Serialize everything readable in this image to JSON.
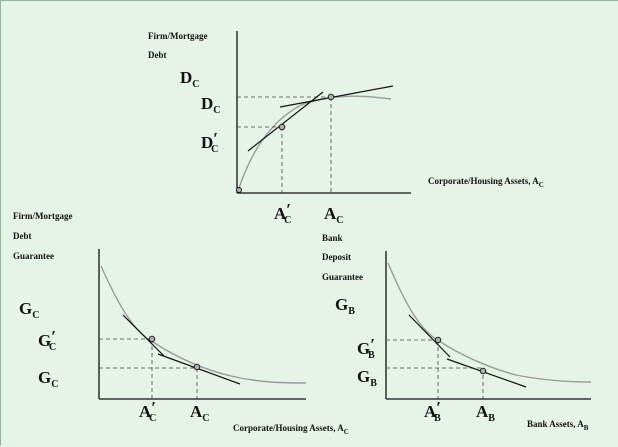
{
  "background": "#e6f4e8",
  "border_color": "#8fb89a",
  "colors": {
    "axis": "#111111",
    "curve": "#9a9a9a",
    "guide": "#444444",
    "point_fill": "#b0b0b0"
  },
  "top_panel": {
    "ylabel": [
      "Firm/Mortgage",
      "Debt"
    ],
    "y_markers": [
      {
        "main": "D",
        "sub": "C",
        "prime": ""
      },
      {
        "main": "D",
        "sub": "C",
        "prime": ""
      },
      {
        "main": "D",
        "sub": "C",
        "prime": "′"
      }
    ],
    "xlabel_main": "Corporate/Housing Assets, A",
    "xlabel_sub": "C",
    "x_markers": [
      {
        "main": "A",
        "sub": "C",
        "prime": "′"
      },
      {
        "main": "A",
        "sub": "C",
        "prime": ""
      }
    ]
  },
  "left_panel": {
    "ylabel": [
      "Firm/Mortgage",
      "Debt",
      "Guarantee"
    ],
    "y_markers": [
      {
        "main": "G",
        "sub": "C",
        "prime": ""
      },
      {
        "main": "G",
        "sub": "C",
        "prime": "′"
      },
      {
        "main": "G",
        "sub": "C",
        "prime": ""
      }
    ],
    "xlabel_main": "Corporate/Housing Assets, A",
    "xlabel_sub": "C",
    "x_markers": [
      {
        "main": "A",
        "sub": "C",
        "prime": "′"
      },
      {
        "main": "A",
        "sub": "C",
        "prime": ""
      }
    ]
  },
  "right_panel": {
    "ylabel": [
      "Bank",
      "Deposit",
      "Guarantee"
    ],
    "y_markers": [
      {
        "main": "G",
        "sub": "B",
        "prime": ""
      },
      {
        "main": "G",
        "sub": "B",
        "prime": "′"
      },
      {
        "main": "G",
        "sub": "B",
        "prime": ""
      }
    ],
    "xlabel_main": "Bank Assets, A",
    "xlabel_sub": "B",
    "x_markers": [
      {
        "main": "A",
        "sub": "B",
        "prime": "′"
      },
      {
        "main": "A",
        "sub": "B",
        "prime": ""
      }
    ]
  }
}
